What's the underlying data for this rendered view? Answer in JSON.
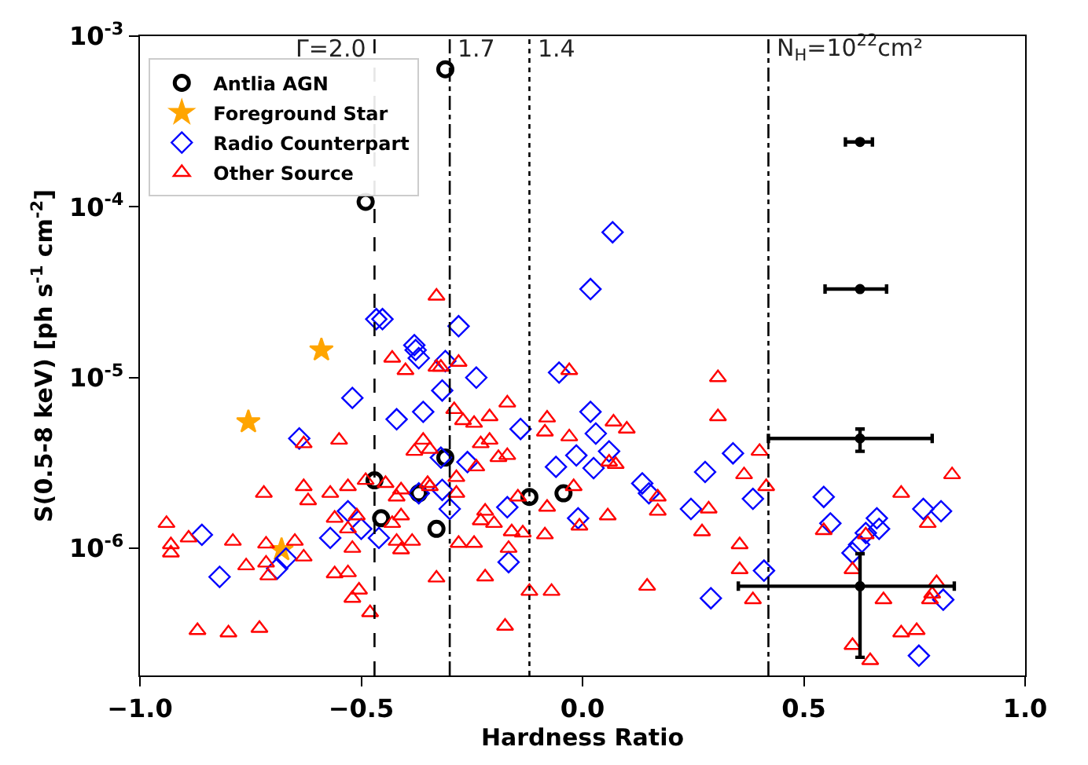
{
  "chart_data": {
    "type": "scatter",
    "xlabel": "Hardness Ratio",
    "ylabel": "S(0.5-8 keV) [ph s$^{-1}$ cm$^{-2}$]",
    "log": "y",
    "legend": "top left",
    "xlim": [
      -1.0,
      1.0
    ],
    "xticks": [
      {
        "value": -1.0,
        "label": "−1.0"
      },
      {
        "value": -0.5,
        "label": "−0.5"
      },
      {
        "value": 0.0,
        "label": "0.0"
      },
      {
        "value": 0.5,
        "label": "0.5"
      },
      {
        "value": 1.0,
        "label": "1.0"
      }
    ],
    "ylim": [
      1.8e-07,
      0.001
    ],
    "yticks": [
      {
        "value": 1e-06,
        "label": "10$^{-6}$"
      },
      {
        "value": 1e-05,
        "label": "10$^{-5}$"
      },
      {
        "value": 0.0001,
        "label": "10$^{-4}$"
      },
      {
        "value": 0.001,
        "label": "10$^{-3}$"
      }
    ],
    "ref_lines": [
      {
        "axis": "x",
        "value": -0.47,
        "line_style": "dashed",
        "color": "#000000"
      },
      {
        "axis": "x",
        "value": -0.3,
        "line_style": "dashdot",
        "color": "#000000"
      },
      {
        "axis": "x",
        "value": -0.12,
        "line_style": "dotted",
        "color": "#000000"
      },
      {
        "axis": "x",
        "value": 0.42,
        "line_style": "dashdot",
        "color": "#000000"
      }
    ],
    "annotations": [
      {
        "text": "Γ=2.0",
        "x": -0.47,
        "y": 0.00085
      },
      {
        "text": "1.7",
        "x": -0.3,
        "y": 0.00085
      },
      {
        "text": "1.4",
        "x": -0.12,
        "y": 0.00085
      },
      {
        "text": "N$_{H}$=10$^{22}$cm²",
        "x": 0.42,
        "y": 0.00085
      }
    ],
    "series": [
      {
        "name": "Antlia AGN",
        "color": "#000000",
        "marker": "circle",
        "x": [
          -0.31,
          -0.49,
          -0.47,
          -0.455,
          -0.37,
          -0.33,
          -0.31,
          -0.12,
          -0.043
        ],
        "values": [
          0.00064,
          0.000107,
          2.5e-06,
          1.5e-06,
          2.1e-06,
          1.3e-06,
          3.4e-06,
          2e-06,
          2.1e-06
        ]
      },
      {
        "name": "Foreground Star",
        "color": "#ffa500",
        "marker": "star",
        "x": [
          -0.59,
          -0.755,
          -0.68
        ],
        "values": [
          1.45e-05,
          5.5e-06,
          9.8e-07
        ]
      },
      {
        "name": "Radio Counterpart",
        "color": "#0000ff",
        "marker": "diamond",
        "x": [
          -0.466,
          -0.452,
          -0.28,
          0.018,
          0.068,
          -0.38,
          -0.377,
          -0.37,
          -0.31,
          -0.317,
          -0.52,
          -0.36,
          -0.42,
          -0.64,
          -0.32,
          -0.37,
          -0.317,
          -0.3,
          -0.86,
          -0.53,
          -0.5,
          -0.57,
          -0.46,
          -0.67,
          -0.69,
          -0.82,
          -0.24,
          -0.14,
          -0.053,
          0.018,
          0.03,
          -0.014,
          -0.06,
          0.025,
          0.06,
          -0.26,
          -0.17,
          -0.01,
          -0.167,
          0.135,
          0.15,
          0.277,
          0.245,
          0.29,
          0.34,
          0.385,
          0.41,
          0.545,
          0.56,
          0.665,
          0.67,
          0.64,
          0.625,
          0.61,
          0.77,
          0.81,
          0.815,
          0.76
        ],
        "values": [
          2.2e-05,
          2.2e-05,
          2e-05,
          3.3e-05,
          7.1e-05,
          1.55e-05,
          1.45e-05,
          1.3e-05,
          1.25e-05,
          8.4e-06,
          7.6e-06,
          6.3e-06,
          5.7e-06,
          4.4e-06,
          3.4e-06,
          2.1e-06,
          2.2e-06,
          1.7e-06,
          1.2e-06,
          1.65e-06,
          1.3e-06,
          1.15e-06,
          1.15e-06,
          8.7e-07,
          7.6e-07,
          6.8e-07,
          1e-05,
          5e-06,
          1.07e-05,
          6.3e-06,
          4.7e-06,
          3.5e-06,
          3e-06,
          2.95e-06,
          3.7e-06,
          3.2e-06,
          1.74e-06,
          1.5e-06,
          8.3e-07,
          2.4e-06,
          2.1e-06,
          2.8e-06,
          1.7e-06,
          5.1e-07,
          3.6e-06,
          1.95e-06,
          7.4e-07,
          2e-06,
          1.4e-06,
          1.5e-06,
          1.3e-06,
          1.23e-06,
          1.05e-06,
          9.4e-07,
          1.7e-06,
          1.65e-06,
          5e-07,
          2.35e-07
        ]
      },
      {
        "name": "Other Source",
        "color": "#ff0000",
        "marker": "triangle",
        "x": [
          -0.33,
          -0.43,
          -0.4,
          -0.33,
          -0.32,
          -0.55,
          -0.63,
          -0.36,
          -0.38,
          -0.345,
          -0.72,
          -0.63,
          -0.62,
          -0.57,
          -0.53,
          -0.49,
          -0.445,
          -0.41,
          -0.42,
          -0.345,
          -0.56,
          -0.53,
          -0.51,
          -0.43,
          -0.41,
          -0.42,
          -0.385,
          -0.41,
          -0.52,
          -0.94,
          -0.89,
          -0.93,
          -0.93,
          -0.79,
          -0.715,
          -0.65,
          -0.76,
          -0.715,
          -0.71,
          -0.63,
          -0.56,
          -0.53,
          -0.505,
          -0.52,
          -0.48,
          -0.87,
          -0.8,
          -0.73,
          -0.33,
          -0.28,
          -0.17,
          -0.29,
          -0.27,
          -0.245,
          -0.21,
          -0.08,
          -0.085,
          -0.03,
          -0.23,
          -0.21,
          -0.19,
          -0.17,
          -0.03,
          0.07,
          0.1,
          0.06,
          0.075,
          -0.24,
          -0.285,
          -0.285,
          -0.35,
          -0.02,
          -0.146,
          -0.22,
          -0.23,
          -0.2,
          -0.08,
          -0.007,
          0.057,
          0.17,
          0.17,
          0.285,
          0.27,
          -0.16,
          -0.135,
          -0.085,
          -0.28,
          -0.245,
          -0.167,
          -0.22,
          -0.12,
          -0.07,
          0.146,
          -0.175,
          0.306,
          0.306,
          0.4,
          0.365,
          0.415,
          0.355,
          0.355,
          0.385,
          0.545,
          0.64,
          0.61,
          0.72,
          0.78,
          0.835,
          0.68,
          0.8,
          0.79,
          0.785,
          0.72,
          0.755,
          0.61,
          0.65
        ],
        "values": [
          3e-05,
          1.3e-05,
          1.1e-05,
          1.15e-05,
          1.15e-05,
          4.3e-06,
          4.1e-06,
          4.3e-06,
          3.7e-06,
          3.8e-06,
          2.1e-06,
          2.3e-06,
          1.9e-06,
          2.1e-06,
          2.3e-06,
          2.5e-06,
          2.4e-06,
          2.2e-06,
          2e-06,
          2.3e-06,
          1.5e-06,
          1.3e-06,
          1.55e-06,
          1.4e-06,
          1.55e-06,
          1.1e-06,
          1.1e-06,
          9.8e-07,
          1e-06,
          1.4e-06,
          1.15e-06,
          1.05e-06,
          9.4e-07,
          1.1e-06,
          1.06e-06,
          1.1e-06,
          7.9e-07,
          8.2e-07,
          6.9e-07,
          8.9e-07,
          7.1e-07,
          7.2e-07,
          5.7e-07,
          5.1e-07,
          4.2e-07,
          3.3e-07,
          3.2e-07,
          3.4e-07,
          6.7e-07,
          1.23e-05,
          7.1e-06,
          6.5e-06,
          5.6e-06,
          5.4e-06,
          5.9e-06,
          5.8e-06,
          4.8e-06,
          1.1e-05,
          4.1e-06,
          4.3e-06,
          3.4e-06,
          3.5e-06,
          4.5e-06,
          5.5e-06,
          5e-06,
          3.2e-06,
          3.1e-06,
          3e-06,
          2.6e-06,
          2.1e-06,
          2.4e-06,
          2.3e-06,
          2e-06,
          1.65e-06,
          1.45e-06,
          1.4e-06,
          1.74e-06,
          1.35e-06,
          1.55e-06,
          2e-06,
          1.65e-06,
          1.7e-06,
          1.25e-06,
          1.25e-06,
          1.23e-06,
          1.2e-06,
          1.07e-06,
          1.07e-06,
          1e-06,
          6.8e-07,
          5.6e-07,
          5.6e-07,
          6e-07,
          3.5e-07,
          1e-05,
          5.9e-06,
          3.7e-06,
          2.7e-06,
          2.3e-06,
          1.05e-06,
          7.5e-07,
          5e-07,
          1.27e-06,
          1.2e-06,
          7.5e-07,
          2.1e-06,
          1.4e-06,
          2.7e-06,
          5e-07,
          6.3e-07,
          5.4e-07,
          5e-07,
          3.2e-07,
          3.3e-07,
          2.7e-07,
          2.2e-07
        ]
      },
      {
        "color": "#000000",
        "marker": "circle",
        "x": [
          0.627,
          0.627,
          0.627,
          0.627
        ],
        "values": [
          0.00024,
          3.3e-05,
          4.4e-06,
          6e-07
        ],
        "errors": [
          null,
          null,
          [
            3.7e-06,
            5e-06
          ],
          [
            2.3e-07,
            9.3e-07
          ]
        ],
        "xerrors": [
          [
            0.594,
            0.655
          ],
          [
            0.548,
            0.687
          ],
          [
            0.42,
            0.79
          ],
          [
            0.352,
            0.84
          ]
        ]
      }
    ]
  }
}
